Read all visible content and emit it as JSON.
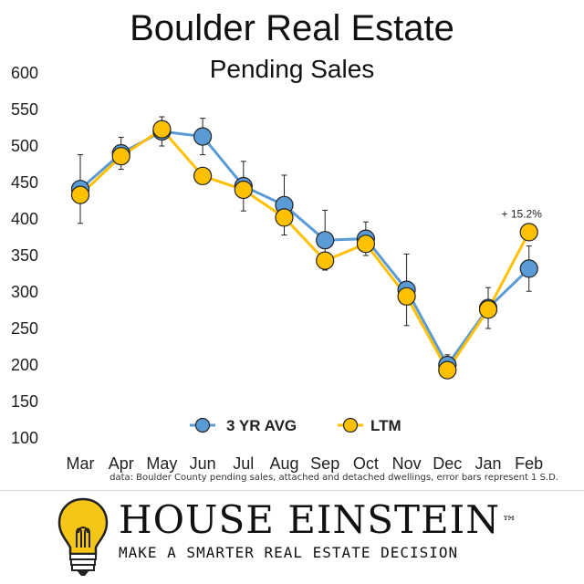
{
  "header": {
    "title": "Boulder Real Estate",
    "subtitle": "Pending Sales"
  },
  "chart_data": {
    "type": "line",
    "title": "Boulder Real Estate",
    "subtitle": "Pending Sales",
    "categories": [
      "Mar",
      "Apr",
      "May",
      "Jun",
      "Jul",
      "Aug",
      "Sep",
      "Oct",
      "Nov",
      "Dec",
      "Jan",
      "Feb"
    ],
    "yticks": [
      "600",
      "550",
      "500",
      "450",
      "400",
      "350",
      "300",
      "250",
      "200",
      "150",
      "100"
    ],
    "ylim": [
      100,
      600
    ],
    "series": [
      {
        "name": "3 YR AVG",
        "color": "#5b9bd5",
        "values": [
          441,
          490,
          520,
          513,
          445,
          419,
          371,
          373,
          303,
          200,
          278,
          332
        ],
        "error": [
          47,
          22,
          20,
          25,
          34,
          41,
          41,
          23,
          49,
          14,
          28,
          31
        ]
      },
      {
        "name": "LTM",
        "color": "#ffc000",
        "values": [
          433,
          486,
          523,
          459,
          440,
          402,
          343,
          366,
          294,
          193,
          276,
          382
        ]
      }
    ],
    "legend": [
      "3 YR AVG",
      "LTM"
    ],
    "legend_position": "bottom-center",
    "annotation": "+ 15.2%"
  },
  "footnote": "data: Boulder County pending sales, attached and detached dwellings, error bars represent 1 S.D.",
  "brand": {
    "name": "HOUSE EINSTEIN",
    "trademark": "™",
    "tagline": "MAKE A SMARTER REAL ESTATE DECISION",
    "bulb_color": "#f5c518"
  }
}
